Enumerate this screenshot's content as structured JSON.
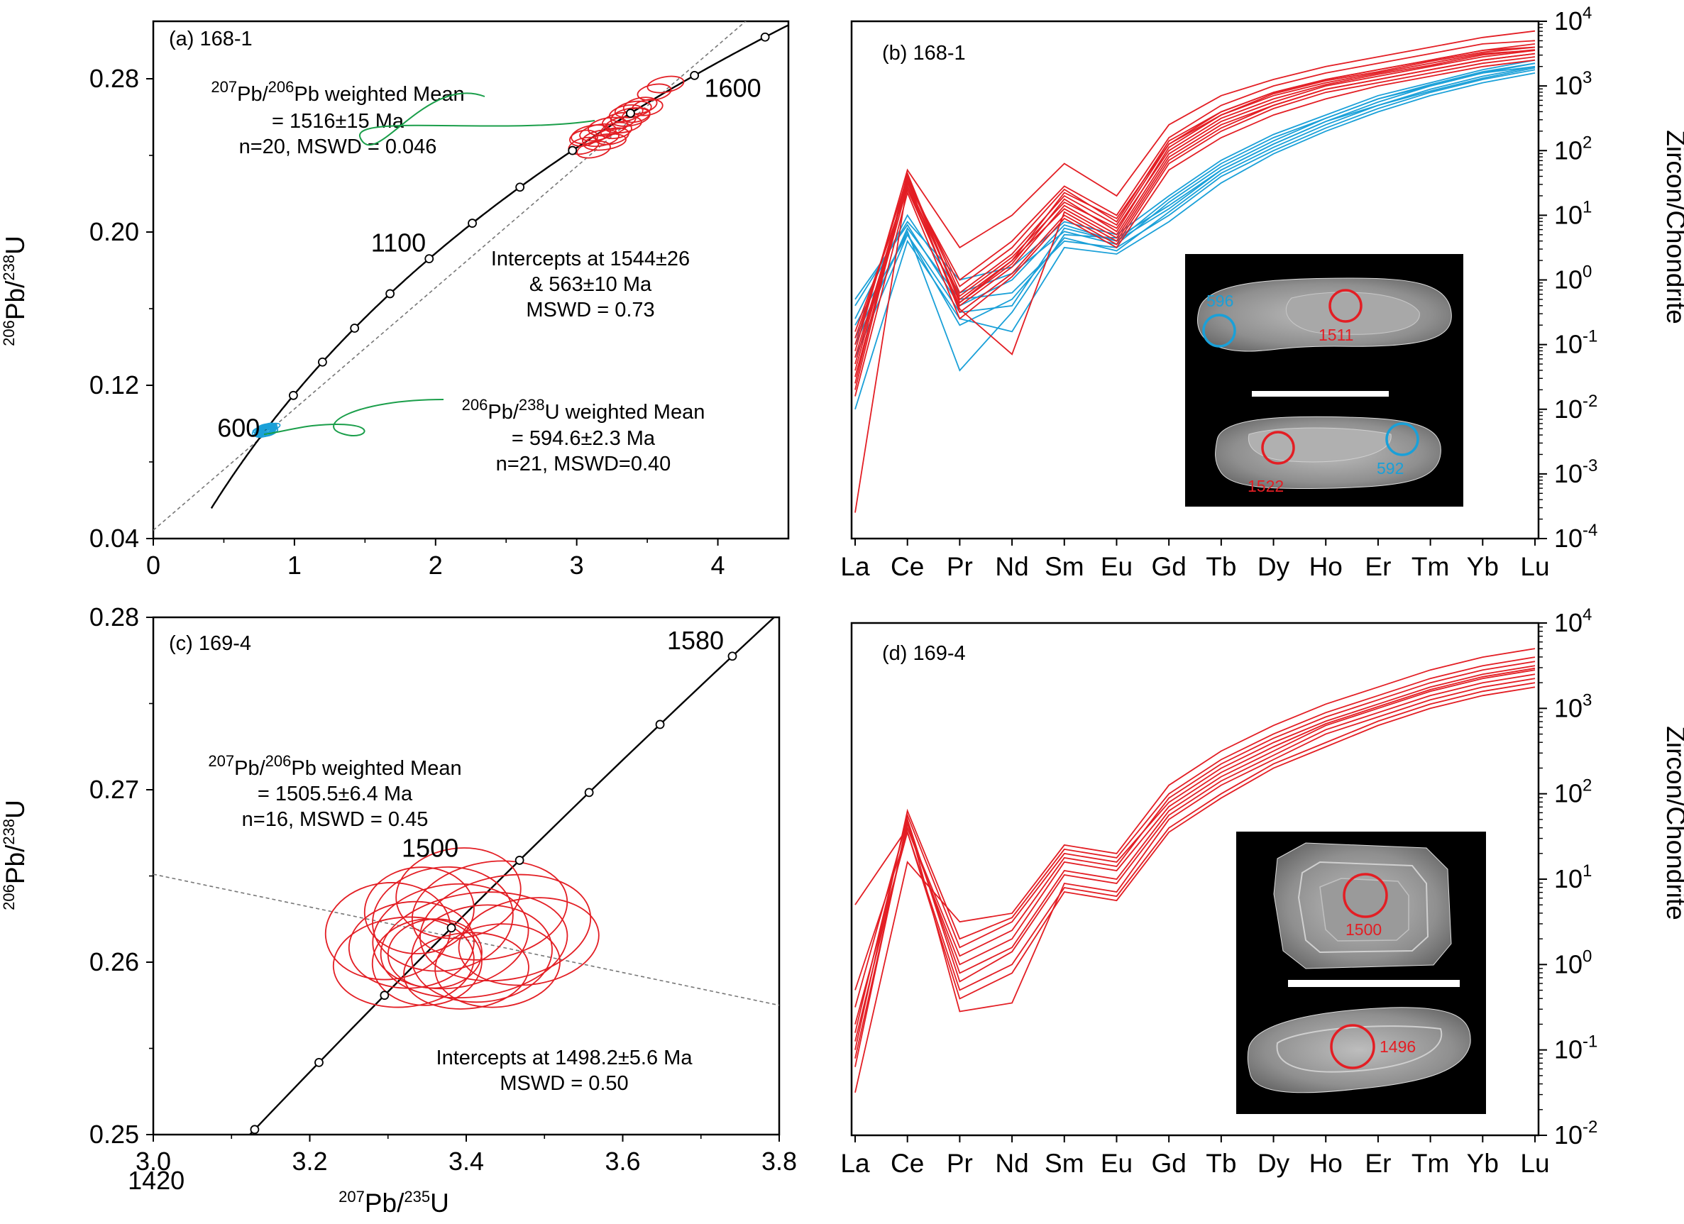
{
  "colors": {
    "red": "#e31e24",
    "blue": "#1aa0d8",
    "green": "#1a9e4a",
    "black": "#000000",
    "dashed": "#777777",
    "cl_background": "#000000",
    "scale_bar": "#ffffff"
  },
  "chart_data": [
    {
      "id": "a",
      "type": "scatter",
      "subtype": "concordia",
      "panel_label": "(a) 168-1",
      "xlabel": "",
      "ylabel": "206Pb/238U",
      "xlim": [
        0,
        4.5
      ],
      "ylim": [
        0.04,
        0.31
      ],
      "xticks": [
        0,
        1,
        2,
        3,
        4
      ],
      "yticks": [
        0.04,
        0.12,
        0.2,
        0.28
      ],
      "concordia_age_marks_ma": [
        700,
        800,
        900,
        1000,
        1100,
        1200,
        1300,
        1400,
        1500,
        1600,
        1700
      ],
      "concordia_age_labels": [
        "600",
        "1100",
        "1600"
      ],
      "discordia_intercepts_ma": [
        563,
        1544
      ],
      "ellipses_red": [
        {
          "x": 3.1,
          "y": 0.251,
          "sx": 0.14,
          "sy": 0.0045,
          "rot": -12
        },
        {
          "x": 3.17,
          "y": 0.249,
          "sx": 0.13,
          "sy": 0.004,
          "rot": -10
        },
        {
          "x": 3.05,
          "y": 0.245,
          "sx": 0.11,
          "sy": 0.004,
          "rot": -15
        },
        {
          "x": 3.22,
          "y": 0.255,
          "sx": 0.14,
          "sy": 0.0045,
          "rot": -10
        },
        {
          "x": 3.12,
          "y": 0.243,
          "sx": 0.12,
          "sy": 0.004,
          "rot": -12
        },
        {
          "x": 3.3,
          "y": 0.258,
          "sx": 0.12,
          "sy": 0.004,
          "rot": -12
        },
        {
          "x": 3.2,
          "y": 0.247,
          "sx": 0.15,
          "sy": 0.004,
          "rot": -8
        },
        {
          "x": 3.35,
          "y": 0.262,
          "sx": 0.12,
          "sy": 0.004,
          "rot": -12
        },
        {
          "x": 3.4,
          "y": 0.264,
          "sx": 0.13,
          "sy": 0.004,
          "rot": -10
        },
        {
          "x": 3.28,
          "y": 0.253,
          "sx": 0.11,
          "sy": 0.004,
          "rot": -10
        },
        {
          "x": 3.45,
          "y": 0.266,
          "sx": 0.12,
          "sy": 0.004,
          "rot": -12
        },
        {
          "x": 3.38,
          "y": 0.26,
          "sx": 0.14,
          "sy": 0.0045,
          "rot": -10
        },
        {
          "x": 3.5,
          "y": 0.265,
          "sx": 0.11,
          "sy": 0.004,
          "rot": -10
        },
        {
          "x": 3.15,
          "y": 0.252,
          "sx": 0.13,
          "sy": 0.004,
          "rot": -12
        },
        {
          "x": 3.25,
          "y": 0.25,
          "sx": 0.12,
          "sy": 0.004,
          "rot": -12
        },
        {
          "x": 3.05,
          "y": 0.249,
          "sx": 0.1,
          "sy": 0.004,
          "rot": -10
        },
        {
          "x": 3.33,
          "y": 0.256,
          "sx": 0.13,
          "sy": 0.004,
          "rot": -10
        },
        {
          "x": 3.42,
          "y": 0.261,
          "sx": 0.1,
          "sy": 0.0035,
          "rot": -12
        },
        {
          "x": 3.55,
          "y": 0.273,
          "sx": 0.12,
          "sy": 0.004,
          "rot": -10
        },
        {
          "x": 3.63,
          "y": 0.277,
          "sx": 0.13,
          "sy": 0.004,
          "rot": -10
        }
      ],
      "ellipses_blue_center": [
        0.8,
        0.0966
      ],
      "ellipses_blue_count": 21,
      "annotations": [
        {
          "line1_sup1": "207",
          "line1_mid": "Pb/",
          "line1_sup2": "206",
          "line1_tail": "Pb weighted Mean",
          "line2": "= 1516±15 Ma",
          "line3": "n=20, MSWD = 0.046"
        },
        {
          "line1": "Intercepts at 1544±26",
          "line2": "& 563±10 Ma",
          "line3": "MSWD = 0.73"
        },
        {
          "line1_sup1": "206",
          "line1_mid": "Pb/",
          "line1_sup2": "238",
          "line1_tail": "U weighted Mean",
          "line2": "= 594.6±2.3 Ma",
          "line3": "n=21, MSWD=0.40"
        }
      ]
    },
    {
      "id": "b",
      "type": "line",
      "subtype": "REE chondrite-normalized pattern (log scale)",
      "panel_label": "(b) 168-1",
      "ylabel": "Zircon/Chondrite",
      "log_scale": true,
      "ylim_exp": [
        -4,
        4
      ],
      "categories": [
        "La",
        "Ce",
        "Pr",
        "Nd",
        "Sm",
        "Eu",
        "Gd",
        "Tb",
        "Dy",
        "Ho",
        "Er",
        "Tm",
        "Yb",
        "Lu"
      ],
      "ytick_base": "10",
      "ytick_exponents": [
        "-4",
        "-3",
        "-2",
        "-1",
        "0",
        "1",
        "2",
        "3",
        "4"
      ],
      "series_red_log10": [
        [
          -1.6,
          1.65,
          -0.35,
          0.25,
          1.25,
          0.75,
          2.05,
          2.55,
          2.85,
          3.05,
          3.2,
          3.35,
          3.5,
          3.55
        ],
        [
          -1.2,
          1.5,
          -0.3,
          0.3,
          1.1,
          0.65,
          1.9,
          2.4,
          2.7,
          2.95,
          3.1,
          3.25,
          3.4,
          3.5
        ],
        [
          -1.4,
          1.55,
          -0.5,
          0.1,
          1.0,
          0.55,
          1.8,
          2.3,
          2.65,
          2.9,
          3.05,
          3.2,
          3.35,
          3.45
        ],
        [
          -1.0,
          1.6,
          -0.2,
          0.4,
          1.3,
          0.85,
          2.1,
          2.6,
          2.9,
          3.1,
          3.25,
          3.4,
          3.55,
          3.65
        ],
        [
          -0.8,
          1.4,
          -0.4,
          0.2,
          1.15,
          0.7,
          1.95,
          2.45,
          2.75,
          3.0,
          3.15,
          3.3,
          3.45,
          3.55
        ],
        [
          -1.8,
          1.35,
          -0.6,
          0.05,
          0.95,
          0.5,
          1.7,
          2.2,
          2.55,
          2.8,
          3.0,
          3.15,
          3.3,
          3.4
        ],
        [
          -3.6,
          1.5,
          0.0,
          0.6,
          1.45,
          1.0,
          2.2,
          2.7,
          3.0,
          3.2,
          3.35,
          3.5,
          3.65,
          3.7
        ],
        [
          -1.5,
          1.45,
          -0.45,
          -1.15,
          1.05,
          0.6,
          1.85,
          2.35,
          2.7,
          2.95,
          3.1,
          3.25,
          3.4,
          3.5
        ],
        [
          -1.1,
          1.7,
          0.5,
          1.0,
          1.8,
          1.3,
          2.4,
          2.85,
          3.1,
          3.3,
          3.45,
          3.6,
          3.75,
          3.85
        ],
        [
          -1.3,
          1.55,
          -0.1,
          0.5,
          1.4,
          0.9,
          2.15,
          2.6,
          2.9,
          3.1,
          3.25,
          3.4,
          3.55,
          3.6
        ],
        [
          -0.9,
          1.45,
          -0.25,
          0.35,
          1.2,
          0.8,
          2.0,
          2.5,
          2.8,
          3.02,
          3.18,
          3.32,
          3.48,
          3.56
        ],
        [
          -1.7,
          1.6,
          -0.35,
          0.3,
          1.35,
          0.95,
          2.1,
          2.55,
          2.88,
          3.08,
          3.22,
          3.38,
          3.52,
          3.6
        ]
      ],
      "series_blue_log10": [
        [
          -0.7,
          0.7,
          -0.5,
          -0.4,
          0.8,
          0.6,
          1.1,
          1.7,
          2.1,
          2.45,
          2.75,
          3.0,
          3.2,
          3.35
        ],
        [
          -1.0,
          0.8,
          -0.3,
          -0.2,
          0.6,
          0.5,
          1.0,
          1.6,
          2.0,
          2.35,
          2.65,
          2.9,
          3.1,
          3.25
        ],
        [
          -0.4,
          0.9,
          0.0,
          0.2,
          0.9,
          0.7,
          1.3,
          1.85,
          2.25,
          2.55,
          2.85,
          3.05,
          3.25,
          3.4
        ],
        [
          -2.0,
          0.6,
          -0.6,
          -0.8,
          0.5,
          0.4,
          0.9,
          1.5,
          1.95,
          2.3,
          2.6,
          2.85,
          3.05,
          3.2
        ],
        [
          -0.6,
          1.0,
          -0.2,
          0.1,
          0.75,
          0.55,
          1.2,
          1.75,
          2.15,
          2.5,
          2.8,
          3.0,
          3.2,
          3.3
        ],
        [
          -0.9,
          0.75,
          -1.4,
          -0.5,
          0.7,
          0.65,
          1.15,
          1.7,
          2.1,
          2.45,
          2.7,
          2.95,
          3.15,
          3.3
        ],
        [
          -0.3,
          0.85,
          -0.4,
          0.0,
          0.85,
          0.6,
          1.25,
          1.8,
          2.2,
          2.5,
          2.8,
          3.02,
          3.22,
          3.35
        ],
        [
          -1.2,
          0.7,
          -0.7,
          -0.3,
          0.65,
          0.45,
          1.05,
          1.65,
          2.05,
          2.4,
          2.7,
          2.92,
          3.12,
          3.28
        ]
      ],
      "inset": {
        "grain_labels_blue": [
          "596",
          "592"
        ],
        "grain_labels_red": [
          "1511",
          "1522"
        ]
      }
    },
    {
      "id": "c",
      "type": "scatter",
      "subtype": "concordia",
      "panel_label": "(c) 169-4",
      "xlabel_sup1": "207",
      "xlabel_mid": "Pb/",
      "xlabel_sup2": "235",
      "xlabel_tail": "U",
      "ylabel": "206Pb/238U",
      "xlim": [
        3.0,
        3.8
      ],
      "ylim": [
        0.25,
        0.28
      ],
      "xticks": [
        "3.0",
        "3.2",
        "3.4",
        "3.6",
        "3.8"
      ],
      "yticks": [
        "0.25",
        "0.26",
        "0.27",
        "0.28"
      ],
      "concordia_age_marks_ma": [
        1420,
        1440,
        1460,
        1480,
        1500,
        1520,
        1540,
        1560,
        1580
      ],
      "concordia_age_labels": [
        "1420",
        "1500",
        "1580"
      ],
      "ellipses_red": [
        {
          "x": 3.33,
          "y": 0.261,
          "sx": 0.08,
          "sy": 0.0025,
          "rot": -5
        },
        {
          "x": 3.38,
          "y": 0.2615,
          "sx": 0.1,
          "sy": 0.003,
          "rot": -8
        },
        {
          "x": 3.42,
          "y": 0.2605,
          "sx": 0.09,
          "sy": 0.0028,
          "rot": -6
        },
        {
          "x": 3.35,
          "y": 0.26,
          "sx": 0.07,
          "sy": 0.0025,
          "rot": -4
        },
        {
          "x": 3.45,
          "y": 0.262,
          "sx": 0.11,
          "sy": 0.003,
          "rot": -10
        },
        {
          "x": 3.4,
          "y": 0.2595,
          "sx": 0.08,
          "sy": 0.0022,
          "rot": -5
        },
        {
          "x": 3.3,
          "y": 0.2618,
          "sx": 0.08,
          "sy": 0.0028,
          "rot": -6
        },
        {
          "x": 3.48,
          "y": 0.2612,
          "sx": 0.09,
          "sy": 0.0025,
          "rot": -8
        },
        {
          "x": 3.37,
          "y": 0.2625,
          "sx": 0.09,
          "sy": 0.003,
          "rot": -7
        },
        {
          "x": 3.43,
          "y": 0.263,
          "sx": 0.1,
          "sy": 0.0028,
          "rot": -10
        },
        {
          "x": 3.34,
          "y": 0.263,
          "sx": 0.07,
          "sy": 0.0025,
          "rot": -5
        },
        {
          "x": 3.41,
          "y": 0.261,
          "sx": 0.12,
          "sy": 0.003,
          "rot": -8
        },
        {
          "x": 3.36,
          "y": 0.2605,
          "sx": 0.06,
          "sy": 0.002,
          "rot": -3
        },
        {
          "x": 3.44,
          "y": 0.2598,
          "sx": 0.08,
          "sy": 0.0024,
          "rot": -6
        },
        {
          "x": 3.39,
          "y": 0.264,
          "sx": 0.08,
          "sy": 0.0026,
          "rot": -8
        },
        {
          "x": 3.32,
          "y": 0.26,
          "sx": 0.09,
          "sy": 0.0026,
          "rot": -5
        }
      ],
      "annotations": [
        {
          "line1_sup1": "207",
          "line1_mid": "Pb/",
          "line1_sup2": "206",
          "line1_tail": "Pb weighted Mean",
          "line2": "= 1505.5±6.4 Ma",
          "line3": "n=16, MSWD = 0.45"
        },
        {
          "line1": "Intercepts at 1498.2±5.6 Ma",
          "line2": "MSWD = 0.50"
        }
      ]
    },
    {
      "id": "d",
      "type": "line",
      "subtype": "REE chondrite-normalized pattern (log scale)",
      "panel_label": "(d) 169-4",
      "ylabel": "Zircon/Chondrite",
      "log_scale": true,
      "ylim_exp": [
        -2,
        4
      ],
      "categories": [
        "La",
        "Ce",
        "Pr",
        "Nd",
        "Sm",
        "Eu",
        "Gd",
        "Tb",
        "Dy",
        "Ho",
        "Er",
        "Tm",
        "Yb",
        "Lu"
      ],
      "ytick_base": "10",
      "ytick_exponents": [
        "-2",
        "-1",
        "0",
        "1",
        "2",
        "3",
        "4"
      ],
      "series_red_log10": [
        [
          -0.8,
          1.75,
          0.2,
          0.5,
          1.3,
          1.2,
          1.9,
          2.3,
          2.6,
          2.85,
          3.05,
          3.25,
          3.4,
          3.5
        ],
        [
          -1.1,
          1.65,
          -0.1,
          0.2,
          1.1,
          1.0,
          1.8,
          2.2,
          2.5,
          2.8,
          3.0,
          3.2,
          3.35,
          3.45
        ],
        [
          0.7,
          1.6,
          0.0,
          0.3,
          1.2,
          1.1,
          1.85,
          2.25,
          2.55,
          2.82,
          3.02,
          3.22,
          3.37,
          3.47
        ],
        [
          -1.5,
          1.2,
          0.5,
          0.6,
          1.4,
          1.3,
          2.1,
          2.5,
          2.8,
          3.05,
          3.25,
          3.45,
          3.6,
          3.7
        ],
        [
          -0.3,
          1.55,
          -0.3,
          0.0,
          0.9,
          0.8,
          1.6,
          2.0,
          2.35,
          2.6,
          2.85,
          3.05,
          3.2,
          3.3
        ],
        [
          -0.5,
          1.7,
          -0.55,
          -0.45,
          0.95,
          0.85,
          1.7,
          2.1,
          2.4,
          2.7,
          2.9,
          3.1,
          3.25,
          3.35
        ],
        [
          -0.9,
          1.6,
          0.1,
          0.4,
          1.25,
          1.15,
          1.95,
          2.35,
          2.65,
          2.9,
          3.1,
          3.3,
          3.45,
          3.55
        ],
        [
          -1.2,
          1.7,
          -0.2,
          0.15,
          1.05,
          0.95,
          1.75,
          2.15,
          2.45,
          2.75,
          2.95,
          3.15,
          3.3,
          3.4
        ],
        [
          -0.7,
          1.55,
          -0.4,
          -0.1,
          0.85,
          0.75,
          1.55,
          1.95,
          2.3,
          2.55,
          2.8,
          3.0,
          3.15,
          3.25
        ],
        [
          -1.0,
          1.8,
          0.3,
          0.55,
          1.35,
          1.25,
          2.0,
          2.4,
          2.7,
          2.95,
          3.15,
          3.35,
          3.5,
          3.6
        ]
      ],
      "inset": {
        "grain_labels_red": [
          "1500",
          "1496"
        ]
      }
    }
  ]
}
